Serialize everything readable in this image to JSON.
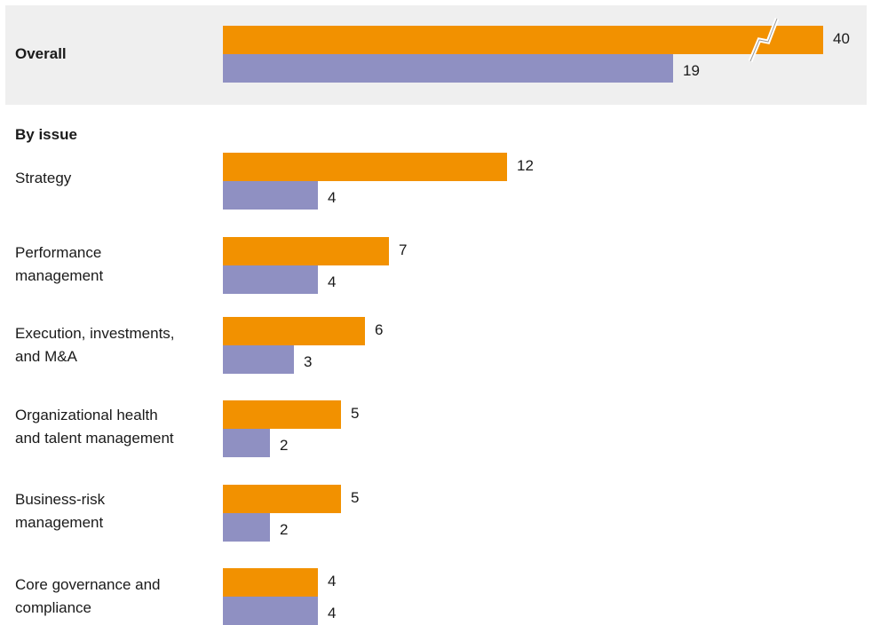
{
  "colors": {
    "series_a": "#F29100",
    "series_b": "#8F90C2",
    "panel": "#EFEFEF"
  },
  "overall_label": "Overall",
  "section_title": "By issue",
  "chart_data": {
    "type": "bar",
    "orientation": "horizontal",
    "series": [
      {
        "values": [
          40,
          12,
          7,
          6,
          5,
          5,
          4
        ]
      },
      {
        "values": [
          19,
          4,
          4,
          3,
          2,
          2,
          4
        ]
      }
    ],
    "categories": [
      "Overall",
      "Strategy",
      "Performance\nmanagement",
      "Execution, investments,\nand M&A",
      "Organizational health\nand talent management",
      "Business-risk\nmanagement",
      "Core governance and\ncompliance"
    ],
    "axis_break": {
      "category": "Overall",
      "series_index": 0
    },
    "grid": false,
    "legend": "none"
  }
}
